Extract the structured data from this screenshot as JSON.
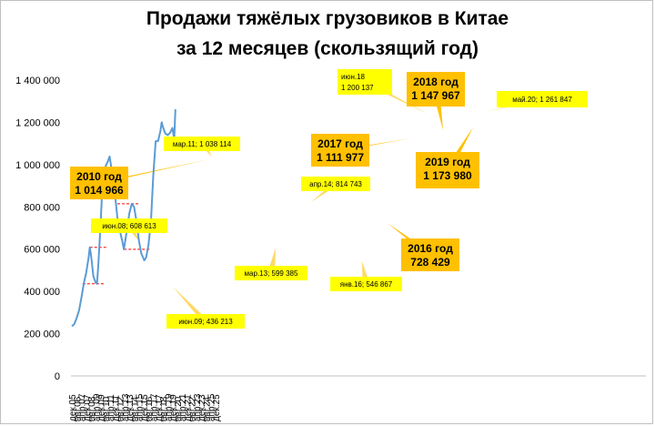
{
  "title_line1": "Продажи тяжёлых грузовиков в Китае",
  "title_line2": "за 12 месяцев (скользящий год)",
  "colors": {
    "line": "#5b9bd5",
    "callout_yellow": "#ffff00",
    "callout_orange": "#ffc000",
    "connector": "#ffd966",
    "dashed": "#ff0000"
  },
  "chart_data": {
    "type": "line",
    "title": "Продажи тяжёлых грузовиков в Китае за 12 месяцев (скользящий год)",
    "ylim": [
      0,
      1400000
    ],
    "y_ticks": [
      0,
      200000,
      400000,
      600000,
      800000,
      1000000,
      1200000,
      1400000
    ],
    "y_tick_labels": [
      "0",
      "200 000",
      "400 000",
      "600 000",
      "800 000",
      "1 000 000",
      "1 200 000",
      "1 400 000"
    ],
    "x_tick_labels": [
      "дек.05",
      "авг.06",
      "апр.07",
      "дек.07",
      "авг.08",
      "апр.09",
      "дек.09",
      "авг.10",
      "апр.11",
      "дек.11",
      "авг.12",
      "апр.13",
      "дек.13",
      "авг.14",
      "апр.15",
      "дек.15",
      "авг.16",
      "апр.17",
      "дек.17",
      "авг.18",
      "апр.19",
      "дек.19",
      "авг.20",
      "апр.21",
      "дек.21",
      "авг.22",
      "апр.23",
      "дек.23",
      "авг.24",
      "апр.25",
      "дек.25"
    ],
    "x": [
      "дек.05",
      "апр.06",
      "авг.06",
      "дек.06",
      "апр.07",
      "авг.07",
      "дек.07",
      "апр.08",
      "июн.08",
      "авг.08",
      "дек.08",
      "апр.09",
      "июн.09",
      "авг.09",
      "дек.09",
      "апр.10",
      "авг.10",
      "дек.10",
      "мар.11",
      "авг.11",
      "дек.11",
      "апр.12",
      "авг.12",
      "дек.12",
      "мар.13",
      "авг.13",
      "дек.13",
      "апр.14",
      "авг.14",
      "дек.14",
      "апр.15",
      "авг.15",
      "янв.16",
      "апр.16",
      "авг.16",
      "дек.16",
      "апр.17",
      "авг.17",
      "дек.17",
      "апр.18",
      "июн.18",
      "авг.18",
      "дек.18",
      "апр.19",
      "авг.19",
      "дек.19",
      "мар.20",
      "май.20"
    ],
    "series": [
      {
        "values": [
          235000,
          245000,
          275000,
          310000,
          370000,
          440000,
          490000,
          560000,
          608613,
          570000,
          470000,
          440000,
          436213,
          520000,
          720000,
          960000,
          990000,
          1014966,
          1038114,
          950000,
          860000,
          750000,
          690000,
          640000,
          599385,
          690000,
          770000,
          814743,
          800000,
          730000,
          640000,
          580000,
          546867,
          560000,
          620000,
          728429,
          950000,
          1110000,
          1111977,
          1160000,
          1200137,
          1180000,
          1147967,
          1140000,
          1150000,
          1173980,
          1120000,
          1261847
        ]
      }
    ],
    "annotations": [
      {
        "label": "июн.08; 608 613"
      },
      {
        "label": "июн.09; 436 213"
      },
      {
        "label": "мар.11; 1 038 114"
      },
      {
        "label": "мар.13; 599 385"
      },
      {
        "label": "апр.14; 814 743"
      },
      {
        "label": "янв.16; 546 867"
      },
      {
        "label": "июн.18",
        "label2": "1 200 137"
      },
      {
        "label": "май.20; 1 261 847"
      },
      {
        "label": "2010 год",
        "label2": "1 014 966"
      },
      {
        "label": "2017 год",
        "label2": "1 111 977"
      },
      {
        "label": "2018 год",
        "label2": "1 147 967"
      },
      {
        "label": "2019 год",
        "label2": "1 173 980"
      },
      {
        "label": "2016 год",
        "label2": "728 429"
      }
    ]
  }
}
